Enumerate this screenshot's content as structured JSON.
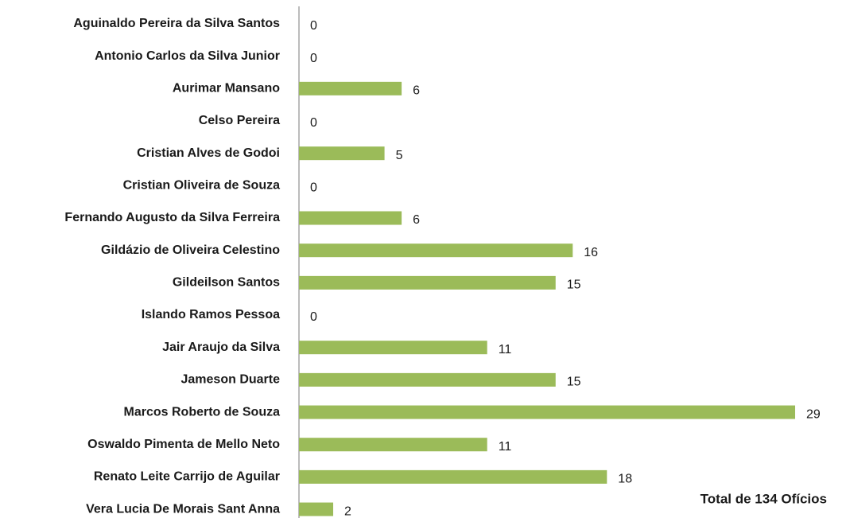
{
  "chart_data": {
    "type": "hbar",
    "categories": [
      "Aguinaldo Pereira da Silva Santos",
      "Antonio Carlos da Silva Junior",
      "Aurimar Mansano",
      "Celso Pereira",
      "Cristian Alves de Godoi",
      "Cristian Oliveira de Souza",
      "Fernando Augusto da Silva Ferreira",
      "Gildázio de Oliveira Celestino",
      "Gildeilson Santos",
      "Islando Ramos Pessoa",
      "Jair Araujo da Silva",
      "Jameson Duarte",
      "Marcos Roberto de Souza",
      "Oswaldo Pimenta de Mello Neto",
      "Renato Leite Carrijo de Aguilar",
      "Vera Lucia De Morais Sant Anna"
    ],
    "values": [
      0,
      0,
      6,
      0,
      5,
      0,
      6,
      16,
      15,
      0,
      11,
      15,
      29,
      11,
      18,
      2
    ],
    "color": "#9bbb59",
    "annotation": "Total de 134 Ofícios"
  }
}
